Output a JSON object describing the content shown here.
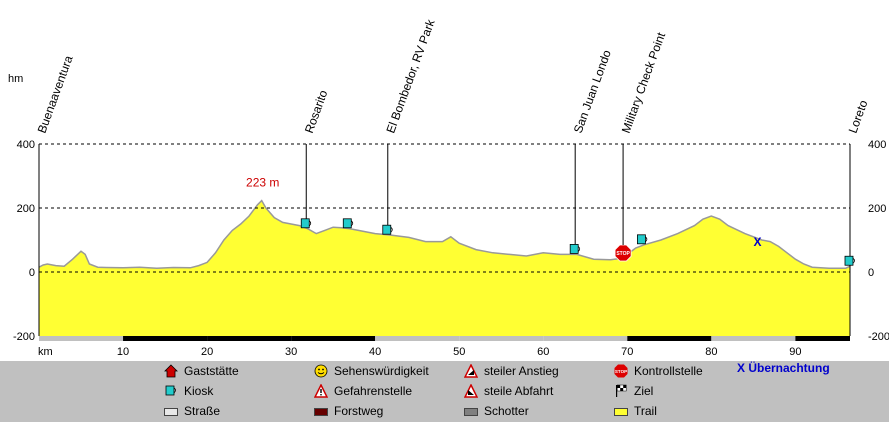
{
  "chart_data": {
    "type": "area",
    "yunit": "hm",
    "xunit": "km",
    "yticks": [
      400,
      200,
      0,
      -200
    ],
    "xticks": [
      10,
      20,
      30,
      40,
      50,
      60,
      70,
      80,
      90
    ],
    "xlim": [
      0,
      96.5
    ],
    "ylim": [
      -200,
      400
    ],
    "grid": true,
    "fill_color": "#ffff33",
    "max_annotation": {
      "km": 26.5,
      "label": "223 m",
      "color": "#cc0000"
    },
    "profile": [
      [
        0,
        15
      ],
      [
        0.5,
        22
      ],
      [
        1,
        25
      ],
      [
        2,
        20
      ],
      [
        3,
        18
      ],
      [
        4,
        40
      ],
      [
        5,
        65
      ],
      [
        5.5,
        55
      ],
      [
        6,
        25
      ],
      [
        7,
        15
      ],
      [
        8,
        14
      ],
      [
        10,
        13
      ],
      [
        12,
        15
      ],
      [
        14,
        12
      ],
      [
        16,
        14
      ],
      [
        18,
        13
      ],
      [
        19,
        20
      ],
      [
        20,
        30
      ],
      [
        21,
        60
      ],
      [
        22,
        100
      ],
      [
        23,
        130
      ],
      [
        24,
        150
      ],
      [
        25,
        175
      ],
      [
        26,
        210
      ],
      [
        26.5,
        223
      ],
      [
        27,
        200
      ],
      [
        28,
        170
      ],
      [
        29,
        155
      ],
      [
        30,
        150
      ],
      [
        31,
        145
      ],
      [
        32,
        135
      ],
      [
        33,
        120
      ],
      [
        34,
        130
      ],
      [
        35,
        140
      ],
      [
        36,
        138
      ],
      [
        37,
        135
      ],
      [
        38,
        130
      ],
      [
        39,
        125
      ],
      [
        40,
        120
      ],
      [
        42,
        115
      ],
      [
        44,
        108
      ],
      [
        46,
        95
      ],
      [
        48,
        95
      ],
      [
        49,
        110
      ],
      [
        50,
        90
      ],
      [
        52,
        70
      ],
      [
        54,
        60
      ],
      [
        56,
        55
      ],
      [
        58,
        50
      ],
      [
        60,
        60
      ],
      [
        62,
        55
      ],
      [
        64,
        55
      ],
      [
        66,
        40
      ],
      [
        68,
        38
      ],
      [
        69,
        42
      ],
      [
        70,
        55
      ],
      [
        71,
        75
      ],
      [
        72,
        85
      ],
      [
        74,
        100
      ],
      [
        76,
        120
      ],
      [
        78,
        145
      ],
      [
        79,
        165
      ],
      [
        80,
        175
      ],
      [
        81,
        165
      ],
      [
        82,
        145
      ],
      [
        84,
        120
      ],
      [
        86,
        100
      ],
      [
        87,
        95
      ],
      [
        88,
        80
      ],
      [
        89,
        60
      ],
      [
        90,
        40
      ],
      [
        91,
        25
      ],
      [
        92,
        15
      ],
      [
        94,
        12
      ],
      [
        96,
        12
      ],
      [
        96.5,
        18
      ]
    ],
    "places": [
      {
        "label": "Buenaaventura",
        "km": 0.0,
        "icon": ""
      },
      {
        "label": "Rosarito",
        "km": 31.8,
        "icon": "kiosk"
      },
      {
        "label": "El Bombedor, RV Park",
        "km": 41.5,
        "icon": "kiosk"
      },
      {
        "label": "San Juan Londo",
        "km": 63.8,
        "icon": "kiosk"
      },
      {
        "label": "Military Check Point",
        "km": 69.5,
        "icon": "stop"
      },
      {
        "label": "Loreto",
        "km": 96.5,
        "icon": "kiosk"
      }
    ],
    "extra_icons": [
      {
        "km": 36.8,
        "type": "kiosk"
      },
      {
        "km": 71.8,
        "type": "kiosk"
      },
      {
        "km": 85.5,
        "type": "overnight",
        "label": "X"
      }
    ],
    "surface_bar": [
      [
        0,
        10,
        "road"
      ],
      [
        10,
        20,
        "forest"
      ],
      [
        20,
        30,
        "forest"
      ],
      [
        30,
        40,
        "forest"
      ],
      [
        40,
        50,
        "road"
      ],
      [
        50,
        60,
        "road"
      ],
      [
        60,
        70,
        "road"
      ],
      [
        70,
        80,
        "forest"
      ],
      [
        80,
        90,
        "road"
      ],
      [
        90,
        96.5,
        "forest"
      ]
    ]
  },
  "legend": {
    "items": [
      {
        "label": "Gaststätte",
        "icon": "house-icon"
      },
      {
        "label": "Sehenswürdigkeit",
        "icon": "smiley-icon"
      },
      {
        "label": "steiler Anstieg",
        "icon": "steep-climb-icon"
      },
      {
        "label": "Kontrollstelle",
        "icon": "stop-icon"
      },
      {
        "label": "Kiosk",
        "icon": "kiosk-icon"
      },
      {
        "label": "Gefahrenstelle",
        "icon": "warning-icon"
      },
      {
        "label": "steile Abfahrt",
        "icon": "steep-descent-icon"
      },
      {
        "label": "Ziel",
        "icon": "finish-flag-icon"
      },
      {
        "label": "Straße",
        "icon": "road-swatch"
      },
      {
        "label": "Forstweg",
        "icon": "forest-road-swatch"
      },
      {
        "label": "Schotter",
        "icon": "gravel-swatch"
      },
      {
        "label": "Trail",
        "icon": "trail-swatch"
      }
    ],
    "overnight": "X Übernachtung"
  }
}
